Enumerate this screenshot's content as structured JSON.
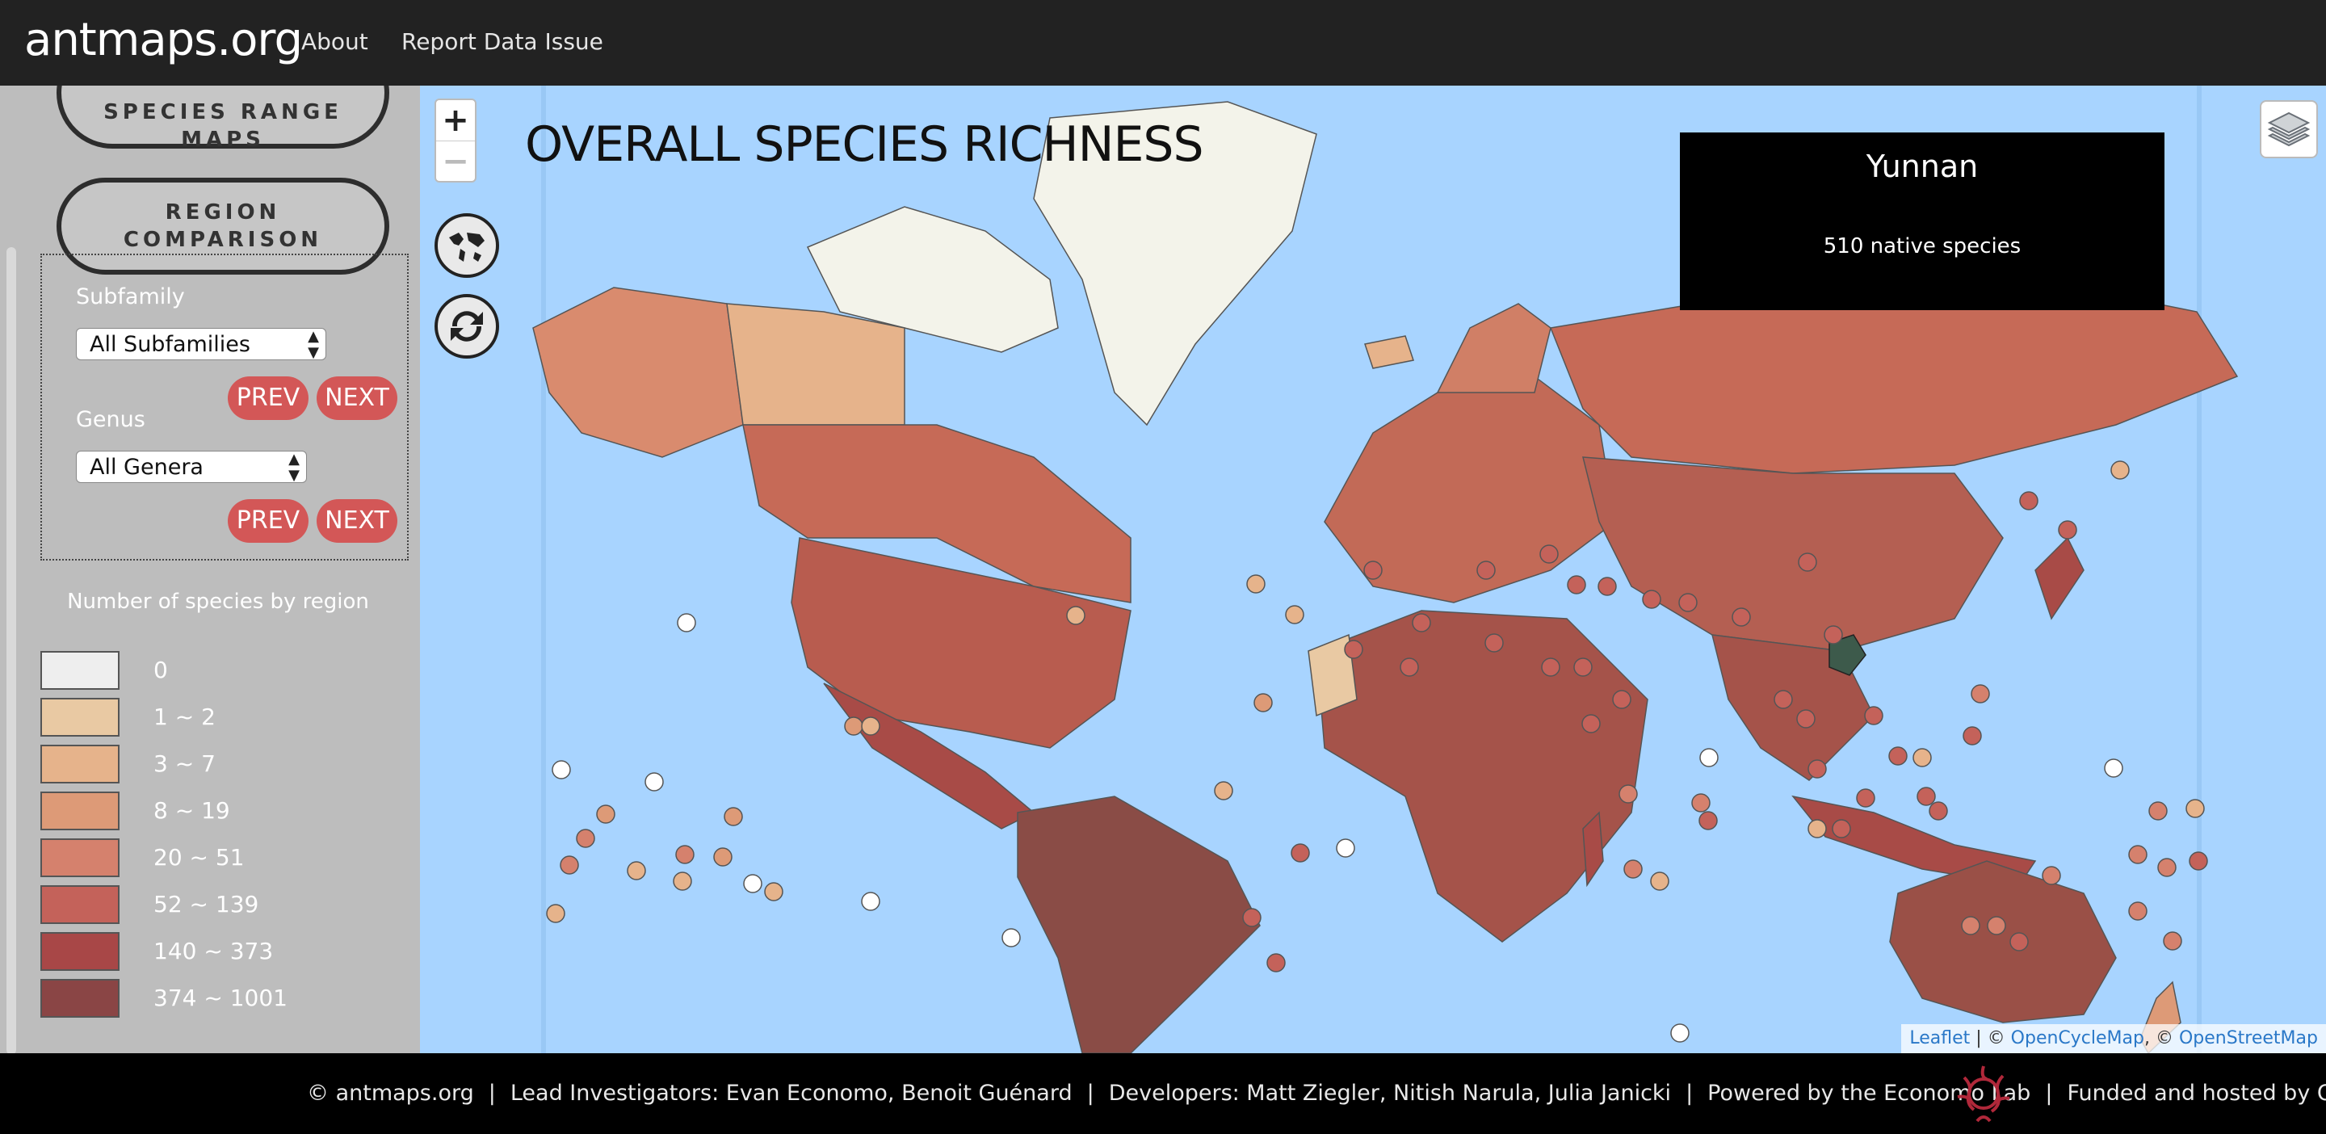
{
  "navbar": {
    "brand": "antmaps.org",
    "links": [
      "About",
      "Report Data Issue"
    ]
  },
  "sidebar": {
    "species_range_button": "SPECIES RANGE MAPS",
    "region_comparison_button": "REGION COMPARISON",
    "subfamily": {
      "label": "Subfamily",
      "selected": "All Subfamilies",
      "prev": "PREV",
      "next": "NEXT"
    },
    "genus": {
      "label": "Genus",
      "selected": "All Genera",
      "prev": "PREV",
      "next": "NEXT"
    },
    "legend": {
      "title": "Number of species by region",
      "items": [
        {
          "label": "0",
          "color": "#eeeeee"
        },
        {
          "label": "1 ~ 2",
          "color": "#e9c9a3"
        },
        {
          "label": "3 ~ 7",
          "color": "#e6b38b"
        },
        {
          "label": "8 ~ 19",
          "color": "#dd9a77"
        },
        {
          "label": "20 ~ 51",
          "color": "#d5816d"
        },
        {
          "label": "52 ~ 139",
          "color": "#c4625a"
        },
        {
          "label": "140 ~ 373",
          "color": "#a84747"
        },
        {
          "label": "374 ~ 1001",
          "color": "#8a4545"
        }
      ]
    }
  },
  "map": {
    "title": "OVERALL SPECIES RICHNESS",
    "zoom_in": "+",
    "zoom_out": "−",
    "info": {
      "region": "Yunnan",
      "count": "510 native species"
    },
    "attribution": {
      "leaflet": "Leaflet",
      "sep1": " | © ",
      "ocm": "OpenCycleMap",
      "sep2": ", © ",
      "osm": "OpenStreetMap"
    }
  },
  "footer": {
    "items": [
      "© antmaps.org",
      "Lead Investigators: Evan Economo, Benoit Guénard",
      "Developers: Matt Ziegler, Nitish Narula, Julia Janicki",
      "Powered by the Economo Lab",
      "Funded and hosted by OIST"
    ],
    "separator": "|"
  }
}
